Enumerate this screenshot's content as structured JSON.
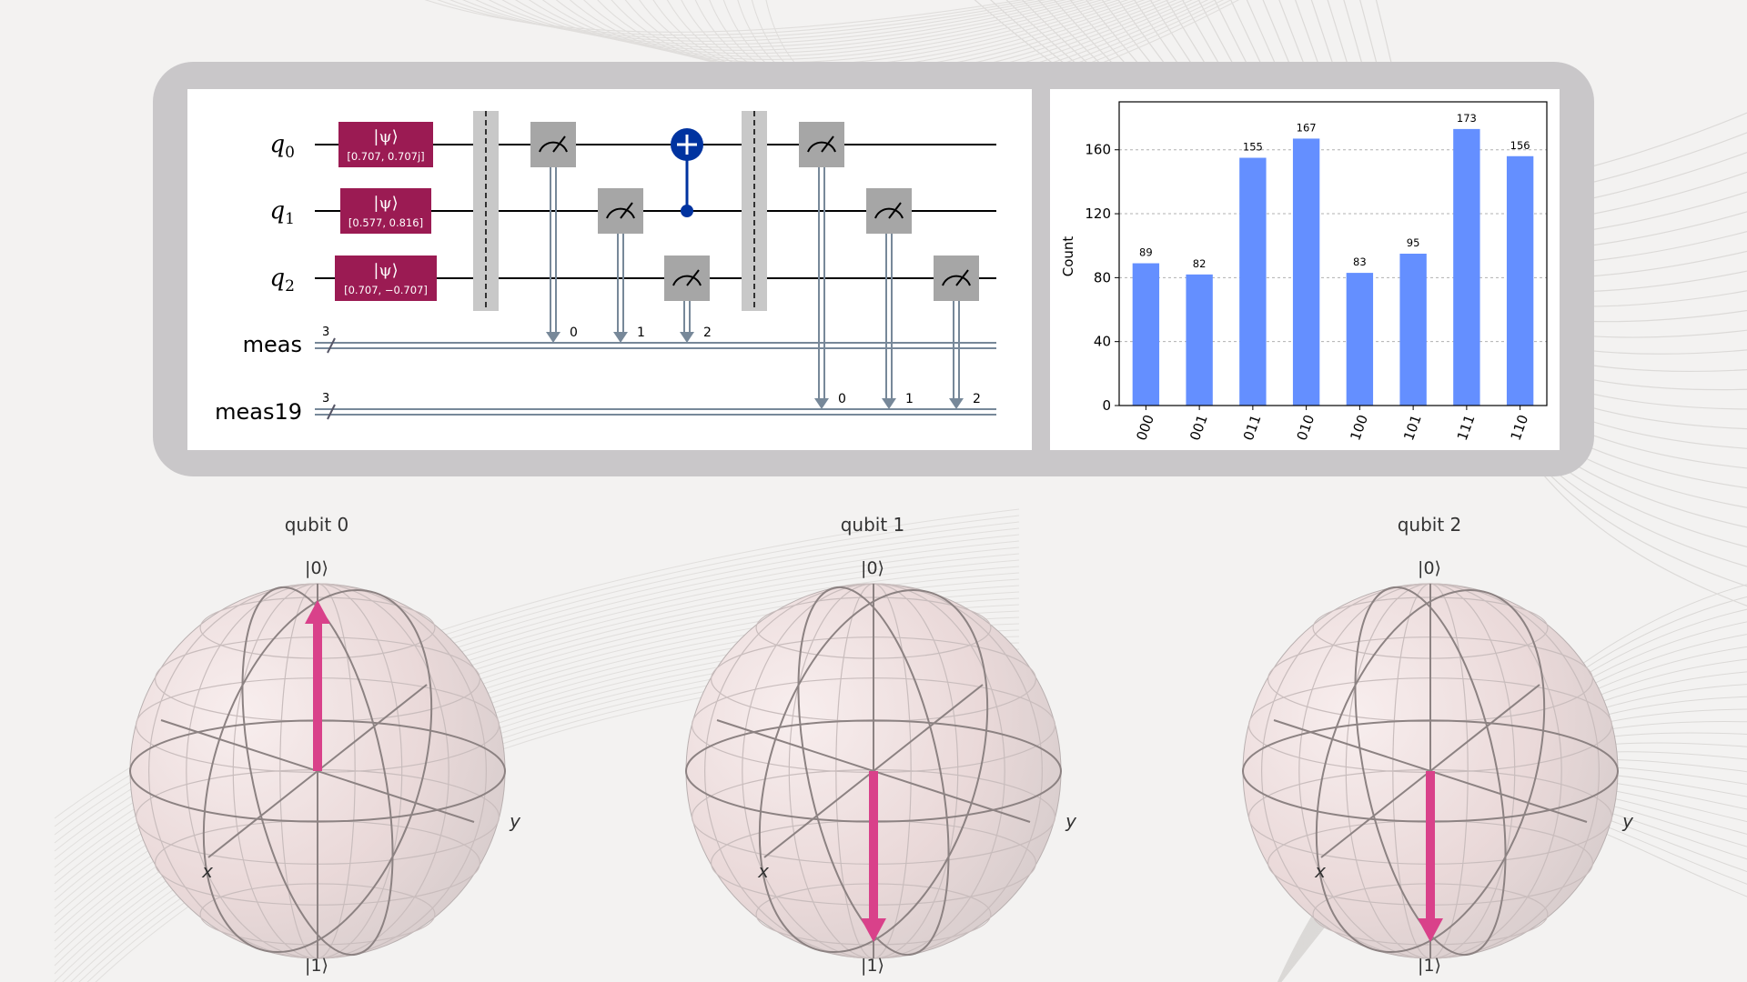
{
  "circuit": {
    "qubit_labels": [
      {
        "base": "q",
        "sub": "0"
      },
      {
        "base": "q",
        "sub": "1"
      },
      {
        "base": "q",
        "sub": "2"
      }
    ],
    "classical_registers": [
      {
        "name": "meas",
        "size": "3"
      },
      {
        "name": "meas19",
        "size": "3"
      }
    ],
    "init_gates": [
      {
        "symbol": "|ψ⟩",
        "params": "[0.707, 0.707j]"
      },
      {
        "symbol": "|ψ⟩",
        "params": "[0.577, 0.816]"
      },
      {
        "symbol": "|ψ⟩",
        "params": "[0.707, −0.707]"
      }
    ],
    "measure_indices_first": [
      "0",
      "1",
      "2"
    ],
    "measure_indices_second": [
      "0",
      "1",
      "2"
    ],
    "colors": {
      "init_gate": "#9b1b53",
      "cnot": "#0033a0",
      "measure": "#a6a6a6",
      "classical_wire": "#778899",
      "barrier": "#c8c8c8"
    }
  },
  "chart_data": {
    "type": "bar",
    "categories": [
      "000",
      "001",
      "011",
      "010",
      "100",
      "101",
      "111",
      "110"
    ],
    "values": [
      89,
      82,
      155,
      167,
      83,
      95,
      173,
      156
    ],
    "data_labels": [
      "89",
      "82",
      "155",
      "167",
      "83",
      "95",
      "173",
      "156"
    ],
    "ylabel": "Count",
    "ylim": [
      0,
      190
    ],
    "yticks": [
      "0",
      "40",
      "80",
      "120",
      "160"
    ],
    "grid": true,
    "bar_color": "#648fff"
  },
  "bloch": [
    {
      "title": "qubit 0",
      "top_label": "|0⟩",
      "bottom_label": "|1⟩",
      "x_label": "x",
      "y_label": "y",
      "vector_z": 1
    },
    {
      "title": "qubit 1",
      "top_label": "|0⟩",
      "bottom_label": "|1⟩",
      "x_label": "x",
      "y_label": "y",
      "vector_z": -1
    },
    {
      "title": "qubit 2",
      "top_label": "|0⟩",
      "bottom_label": "|1⟩",
      "x_label": "x",
      "y_label": "y",
      "vector_z": -1
    }
  ],
  "bloch_vector_color": "#d9418a"
}
